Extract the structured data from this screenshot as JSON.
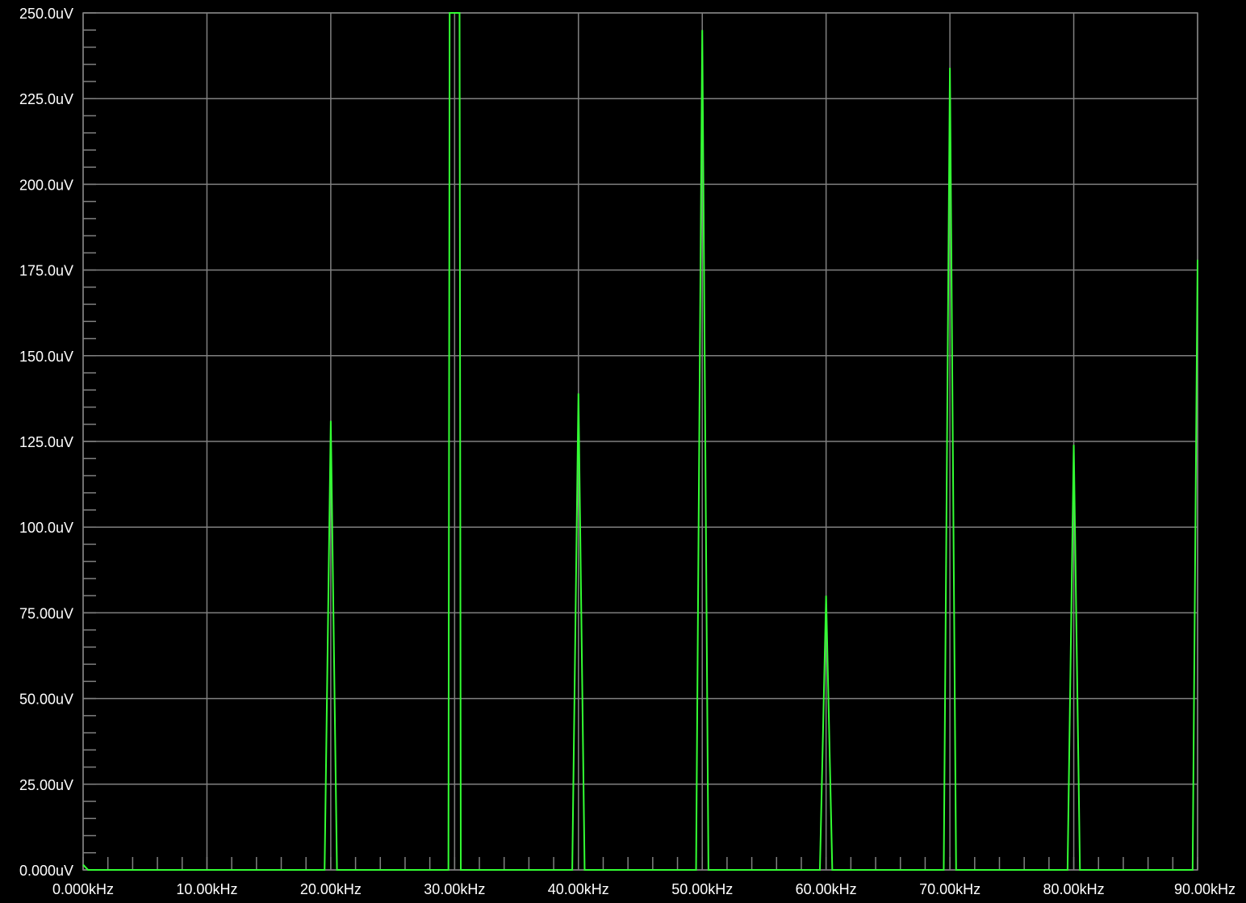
{
  "chart_data": {
    "type": "line",
    "title": "",
    "xlabel": "",
    "ylabel": "",
    "xlim": [
      0,
      90000
    ],
    "ylim": [
      0,
      250
    ],
    "grid": true,
    "background_color": "#000000",
    "grid_color": "#808080",
    "series_color": "#33ff33",
    "x_ticks": [
      0,
      10000,
      20000,
      30000,
      40000,
      50000,
      60000,
      70000,
      80000,
      90000
    ],
    "x_tick_labels": [
      "0.000kHz",
      "10.00kHz",
      "20.00kHz",
      "30.00kHz",
      "40.00kHz",
      "50.00kHz",
      "60.00kHz",
      "70.00kHz",
      "80.00kHz",
      "90.00kHz"
    ],
    "y_ticks": [
      0,
      25,
      50,
      75,
      100,
      125,
      150,
      175,
      200,
      225,
      250
    ],
    "y_tick_labels": [
      "0.000uV",
      "25.00uV",
      "50.00uV",
      "75.00uV",
      "100.0uV",
      "125.0uV",
      "150.0uV",
      "175.0uV",
      "200.0uV",
      "225.0uV",
      "250.0uV"
    ],
    "series": [
      {
        "x": [
          0,
          400,
          1000,
          19500,
          20000,
          20500,
          29500,
          29600,
          29700,
          30000,
          30300,
          30400,
          30500,
          39500,
          40000,
          40500,
          49500,
          50000,
          50500,
          59500,
          60000,
          60500,
          69500,
          70000,
          70500,
          79500,
          80000,
          80500,
          89600,
          90000
        ],
        "y": [
          1.5,
          0,
          0,
          0,
          131,
          0,
          0,
          250,
          250,
          250,
          250,
          250,
          0,
          0,
          139,
          0,
          0,
          245,
          0,
          0,
          80,
          0,
          0,
          234,
          0,
          0,
          124,
          0,
          0,
          178
        ]
      }
    ]
  }
}
